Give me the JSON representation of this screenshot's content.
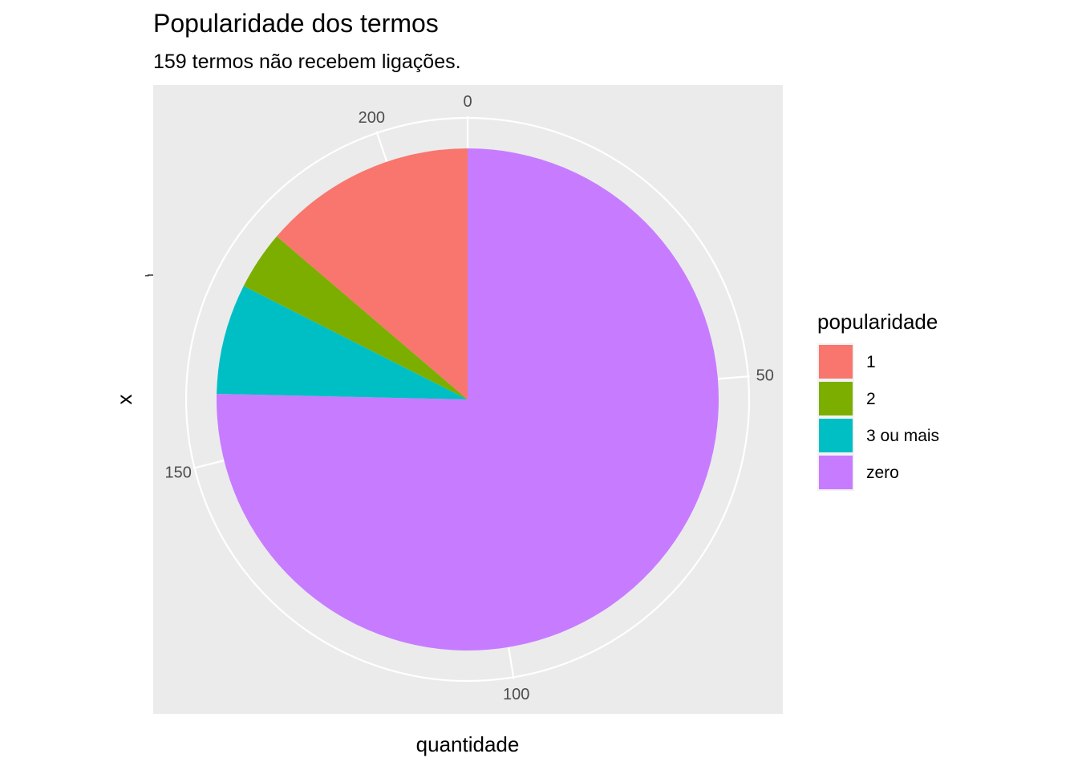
{
  "chart_data": {
    "type": "pie",
    "title": "Popularidade dos termos",
    "subtitle": "159 termos não recebem ligações.",
    "xlabel": "quantidade",
    "ylabel": "x",
    "y_tick_label": "-",
    "grid": true,
    "legend": {
      "title": "popularidade",
      "position": "right"
    },
    "categories": [
      "zero",
      "3 ou mais",
      "2",
      "1"
    ],
    "values": [
      159,
      15,
      8,
      29
    ],
    "colors": {
      "1": "#F8766D",
      "2": "#7CAE00",
      "3 ou mais": "#00BFC4",
      "zero": "#C77CFF"
    },
    "legend_order": [
      "1",
      "2",
      "3 ou mais",
      "zero"
    ],
    "total": 211,
    "radial_ticks": [
      0,
      50,
      100,
      150,
      200
    ],
    "radial_tick_labels": [
      "0",
      "50",
      "100",
      "150",
      "200"
    ]
  }
}
